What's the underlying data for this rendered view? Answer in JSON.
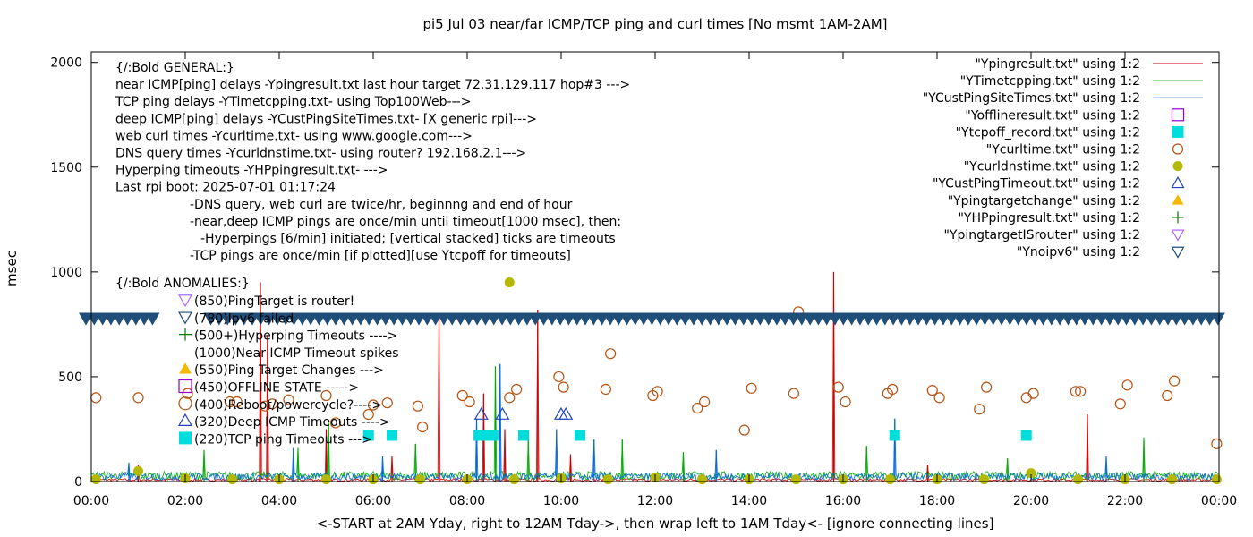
{
  "chart_data": {
    "type": "scatter",
    "title": "pi5 Jul 03  near/far ICMP/TCP ping and curl times [No msmt 1AM-2AM]",
    "xlabel": "<-START at 2AM Yday, right to 12AM Tday->, then wrap left to 1AM Tday<- [ignore connecting lines]",
    "ylabel": "msec",
    "xlim": [
      0,
      24
    ],
    "ylim": [
      0,
      2050
    ],
    "x_ticks": [
      "00:00",
      "02:00",
      "04:00",
      "06:00",
      "08:00",
      "10:00",
      "12:00",
      "14:00",
      "16:00",
      "18:00",
      "20:00",
      "22:00",
      "00:00"
    ],
    "y_ticks": [
      "0",
      "500",
      "1000",
      "1500",
      "2000"
    ],
    "y_tick_values": [
      0,
      500,
      1000,
      1500,
      2000
    ],
    "grid": false,
    "legend_position": "top-right",
    "notes": [
      "{/:Bold GENERAL:}",
      "near ICMP[ping] delays -Ypingresult.txt last hour target 72.31.129.117 hop#3 --->",
      "TCP ping delays -YTimetcpping.txt- using Top100Web--->",
      "deep ICMP[ping] delays -YCustPingSiteTimes.txt- [X generic rpi]--->",
      "web curl times -Ycurltime.txt- using www.google.com--->",
      "DNS query times -Ycurldnstime.txt- using router? 192.168.2.1--->",
      "Hyperping timeouts -YHPpingresult.txt- --->",
      "Last rpi boot: 2025-07-01 01:17:24",
      "-DNS query, web curl are twice/hr, beginnng and end of hour",
      "-near,deep ICMP pings are once/min until timeout[1000 msec], then:",
      "-Hyperpings [6/min] initiated; [vertical stacked] ticks are timeouts",
      "-TCP pings are once/min [if plotted][use Ytcpoff for timeouts]",
      "{/:Bold ANOMALIES:}"
    ],
    "anomalies": [
      {
        "marker": "Ypingtargetisrouter",
        "label": "(850)PingTarget is router!"
      },
      {
        "marker": "Ynoipv6",
        "label": "(780)Ipv6 failed"
      },
      {
        "marker": "YHPpingresult",
        "label": "(500+)Hyperping Timeouts ---->"
      },
      {
        "marker": "none",
        "label": "(1000)Near ICMP Timeout spikes"
      },
      {
        "marker": "Ypingtargetchange",
        "label": "(550)Ping Target Changes --->"
      },
      {
        "marker": "Yofflineresult",
        "label": "(450)OFFLINE STATE ----->"
      },
      {
        "marker": "Ycurltime",
        "label": "(400)Reboot/powercycle?---->"
      },
      {
        "marker": "YCustPingTimeout",
        "label": "(320)Deep ICMP Timeouts ---->"
      },
      {
        "marker": "Ytcpoff_record",
        "label": "(220)TCP ping Timeouts --->"
      }
    ],
    "series": [
      {
        "name": "\"Ypingresult.txt\" using 1:2",
        "style": "line",
        "color": "#cc0000"
      },
      {
        "name": "\"YTimetcpping.txt\" using 1:2",
        "style": "line",
        "color": "#00aa00"
      },
      {
        "name": "\"YCustPingSiteTimes.txt\" using 1:2",
        "style": "line",
        "color": "#0066dd"
      },
      {
        "name": "\"Yofflineresult.txt\" using 1:2",
        "style": "open-square",
        "color": "#9400d3",
        "points": []
      },
      {
        "name": "\"Ytcpoff_record.txt\" using 1:2",
        "style": "filled-square",
        "color": "#00dddd",
        "points": [
          [
            5.9,
            220
          ],
          [
            6.4,
            220
          ],
          [
            8.25,
            220
          ],
          [
            8.45,
            220
          ],
          [
            8.55,
            220
          ],
          [
            9.2,
            220
          ],
          [
            10.4,
            220
          ],
          [
            17.1,
            220
          ],
          [
            19.9,
            220
          ]
        ]
      },
      {
        "name": "\"Ycurltime.txt\" using 1:2",
        "style": "open-circle",
        "color": "#b8510f",
        "points": [
          [
            0.1,
            400
          ],
          [
            1.0,
            400
          ],
          [
            2.05,
            420
          ],
          [
            2.95,
            380
          ],
          [
            3.1,
            380
          ],
          [
            3.7,
            360
          ],
          [
            3.85,
            370
          ],
          [
            4.2,
            390
          ],
          [
            5.0,
            410
          ],
          [
            5.2,
            280
          ],
          [
            5.9,
            320
          ],
          [
            6.0,
            365
          ],
          [
            6.3,
            375
          ],
          [
            6.95,
            360
          ],
          [
            7.05,
            260
          ],
          [
            7.9,
            410
          ],
          [
            8.05,
            380
          ],
          [
            8.9,
            400
          ],
          [
            9.05,
            440
          ],
          [
            9.95,
            500
          ],
          [
            10.05,
            450
          ],
          [
            10.95,
            440
          ],
          [
            11.05,
            610
          ],
          [
            11.95,
            410
          ],
          [
            12.05,
            430
          ],
          [
            12.9,
            350
          ],
          [
            13.05,
            380
          ],
          [
            13.9,
            245
          ],
          [
            14.05,
            445
          ],
          [
            14.95,
            420
          ],
          [
            15.05,
            810
          ],
          [
            15.9,
            450
          ],
          [
            16.05,
            380
          ],
          [
            16.95,
            420
          ],
          [
            17.05,
            440
          ],
          [
            17.9,
            435
          ],
          [
            18.05,
            400
          ],
          [
            18.9,
            345
          ],
          [
            19.05,
            450
          ],
          [
            19.9,
            400
          ],
          [
            20.05,
            420
          ],
          [
            20.95,
            430
          ],
          [
            21.05,
            430
          ],
          [
            21.9,
            370
          ],
          [
            22.05,
            460
          ],
          [
            22.9,
            410
          ],
          [
            23.05,
            480
          ],
          [
            23.95,
            180
          ]
        ]
      },
      {
        "name": "\"Ycurldnstime.txt\" using 1:2",
        "style": "filled-circle",
        "color": "#b5b800",
        "points": [
          [
            0.1,
            10
          ],
          [
            1.0,
            50
          ],
          [
            2.0,
            15
          ],
          [
            3.0,
            10
          ],
          [
            4.0,
            10
          ],
          [
            5.0,
            10
          ],
          [
            6.0,
            10
          ],
          [
            7.0,
            10
          ],
          [
            8.0,
            10
          ],
          [
            8.9,
            950
          ],
          [
            9.0,
            10
          ],
          [
            10.0,
            15
          ],
          [
            11.0,
            10
          ],
          [
            12.0,
            20
          ],
          [
            13.0,
            10
          ],
          [
            14.0,
            10
          ],
          [
            15.0,
            10
          ],
          [
            16.0,
            10
          ],
          [
            17.0,
            10
          ],
          [
            18.0,
            10
          ],
          [
            19.0,
            10
          ],
          [
            20.0,
            40
          ],
          [
            21.0,
            10
          ],
          [
            22.0,
            10
          ],
          [
            23.0,
            10
          ],
          [
            23.95,
            10
          ]
        ]
      },
      {
        "name": "\"YCustPingTimeout.txt\" using 1:2",
        "style": "open-triangle",
        "color": "#2244bb",
        "points": [
          [
            8.3,
            320
          ],
          [
            8.75,
            320
          ],
          [
            10.0,
            320
          ],
          [
            10.1,
            320
          ]
        ]
      },
      {
        "name": "\"Ypingtargetchange\" using 1:2",
        "style": "filled-triangle",
        "color": "#f5b800",
        "points": []
      },
      {
        "name": "\"YHPpingresult.txt\" using 1:2",
        "style": "plus",
        "color": "#007700",
        "points": []
      },
      {
        "name": "\"YpingtargetISrouter\" using 1:2",
        "style": "open-triangle-down",
        "color": "#b266ff",
        "points": []
      },
      {
        "name": "\"Ynoipv6\" using 1:2",
        "style": "open-triangle-down",
        "color": "#1f4e79",
        "band": {
          "y": 780,
          "from": 0,
          "to": 24,
          "gap": [
            1.0,
            2.05
          ]
        }
      }
    ],
    "spikes": [
      {
        "series": "\"Ypingresult.txt\" using 1:2",
        "points": [
          [
            1.0,
            80
          ],
          [
            3.6,
            950
          ],
          [
            3.75,
            700
          ],
          [
            5.0,
            250
          ],
          [
            6.4,
            120
          ],
          [
            7.4,
            800
          ],
          [
            8.35,
            420
          ],
          [
            8.8,
            250
          ],
          [
            9.5,
            820
          ],
          [
            10.2,
            130
          ],
          [
            15.8,
            1000
          ],
          [
            17.8,
            80
          ],
          [
            21.2,
            320
          ]
        ]
      },
      {
        "series": "\"YTimetcpping.txt\" using 1:2",
        "points": [
          [
            2.4,
            150
          ],
          [
            4.4,
            160
          ],
          [
            5.05,
            280
          ],
          [
            6.9,
            180
          ],
          [
            8.6,
            550
          ],
          [
            9.3,
            200
          ],
          [
            11.3,
            200
          ],
          [
            12.6,
            140
          ],
          [
            16.5,
            170
          ],
          [
            19.5,
            110
          ],
          [
            22.4,
            210
          ]
        ]
      },
      {
        "series": "\"YCustPingSiteTimes.txt\" using 1:2",
        "points": [
          [
            0.8,
            90
          ],
          [
            4.3,
            160
          ],
          [
            6.2,
            120
          ],
          [
            8.2,
            300
          ],
          [
            8.7,
            560
          ],
          [
            9.9,
            250
          ],
          [
            10.7,
            200
          ],
          [
            13.3,
            150
          ],
          [
            17.1,
            300
          ],
          [
            21.6,
            120
          ]
        ]
      }
    ]
  }
}
